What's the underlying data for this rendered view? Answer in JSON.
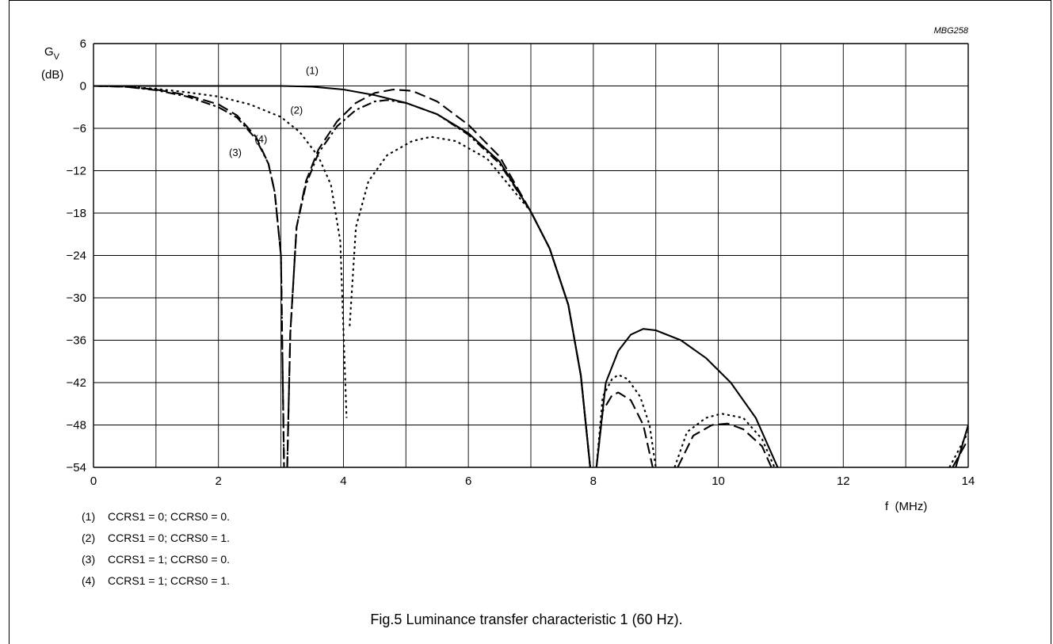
{
  "chart_data": {
    "type": "line",
    "code": "MBG258",
    "ylabel_main": "G",
    "ylabel_sub": "V",
    "ylabel_unit": "(dB)",
    "xlabel": "f  (MHz)",
    "xlim": [
      0,
      14
    ],
    "ylim": [
      -54,
      6
    ],
    "xticks": [
      0,
      2,
      4,
      6,
      8,
      10,
      12,
      14
    ],
    "yticks": [
      6,
      0,
      -6,
      -12,
      -18,
      -24,
      -30,
      -36,
      -42,
      -48,
      -54
    ],
    "tick_labels_y": [
      "6",
      "0",
      "−6",
      "−12",
      "−18",
      "−24",
      "−30",
      "−36",
      "−42",
      "−48",
      "−54"
    ],
    "grid": true,
    "series": [
      {
        "name": "(1)",
        "style": "solid",
        "segments": [
          [
            [
              0,
              0
            ],
            [
              1,
              0
            ],
            [
              2,
              0
            ],
            [
              3,
              0
            ],
            [
              3.5,
              -0.1
            ],
            [
              4,
              -0.5
            ],
            [
              4.5,
              -1.3
            ],
            [
              5,
              -2.4
            ],
            [
              5.5,
              -4.0
            ],
            [
              6,
              -6.7
            ],
            [
              6.5,
              -10.7
            ],
            [
              7,
              -17.8
            ],
            [
              7.3,
              -23
            ],
            [
              7.6,
              -31
            ],
            [
              7.8,
              -41
            ],
            [
              7.95,
              -54
            ]
          ],
          [
            [
              8.05,
              -54
            ],
            [
              8.2,
              -42
            ],
            [
              8.4,
              -37.5
            ],
            [
              8.6,
              -35.2
            ],
            [
              8.8,
              -34.4
            ],
            [
              9,
              -34.6
            ],
            [
              9.4,
              -36
            ],
            [
              9.8,
              -38.5
            ],
            [
              10.2,
              -42
            ],
            [
              10.6,
              -47
            ],
            [
              10.95,
              -54
            ]
          ],
          [
            [
              13.8,
              -54
            ],
            [
              14,
              -48
            ]
          ]
        ]
      },
      {
        "name": "(2)",
        "style": "dotted",
        "segments": [
          [
            [
              0,
              0
            ],
            [
              0.5,
              -0.1
            ],
            [
              1,
              -0.4
            ],
            [
              1.5,
              -0.9
            ],
            [
              2,
              -1.5
            ],
            [
              2.5,
              -2.6
            ],
            [
              3,
              -4.4
            ],
            [
              3.3,
              -6.5
            ],
            [
              3.6,
              -10
            ],
            [
              3.8,
              -14
            ],
            [
              3.95,
              -22
            ],
            [
              4.05,
              -47
            ]
          ],
          [
            [
              4.1,
              -34
            ],
            [
              4.2,
              -20
            ],
            [
              4.4,
              -13.5
            ],
            [
              4.7,
              -9.8
            ],
            [
              5.1,
              -7.8
            ],
            [
              5.4,
              -7.2
            ],
            [
              5.8,
              -7.8
            ],
            [
              6.3,
              -10.3
            ],
            [
              7,
              -17.8
            ],
            [
              7.3,
              -23
            ],
            [
              7.6,
              -31
            ],
            [
              7.8,
              -41
            ],
            [
              7.95,
              -54
            ]
          ],
          [
            [
              8.05,
              -54
            ],
            [
              8.15,
              -44
            ],
            [
              8.3,
              -41.5
            ],
            [
              8.4,
              -40.9
            ],
            [
              8.55,
              -41.5
            ],
            [
              8.75,
              -44
            ],
            [
              8.9,
              -48
            ],
            [
              9,
              -54
            ]
          ],
          [
            [
              9.3,
              -54
            ],
            [
              9.5,
              -49
            ],
            [
              9.8,
              -47
            ],
            [
              10.05,
              -46.4
            ],
            [
              10.4,
              -47
            ],
            [
              10.7,
              -50
            ],
            [
              10.9,
              -54
            ]
          ],
          [
            [
              13.7,
              -54
            ],
            [
              14,
              -49
            ]
          ]
        ]
      },
      {
        "name": "(3)",
        "style": "dash-dot",
        "segments": [
          [
            [
              0,
              0
            ],
            [
              0.5,
              -0.1
            ],
            [
              1,
              -0.6
            ],
            [
              1.5,
              -1.5
            ],
            [
              2,
              -3.0
            ],
            [
              2.3,
              -4.5
            ],
            [
              2.6,
              -7.5
            ],
            [
              2.8,
              -11
            ],
            [
              2.9,
              -15
            ],
            [
              3.0,
              -24
            ],
            [
              3.05,
              -54
            ]
          ],
          [
            [
              3.1,
              -54
            ],
            [
              3.15,
              -35
            ],
            [
              3.25,
              -20
            ],
            [
              3.4,
              -14
            ],
            [
              3.6,
              -9.5
            ],
            [
              3.9,
              -5.7
            ],
            [
              4.2,
              -3.4
            ],
            [
              4.5,
              -2.2
            ],
            [
              4.7,
              -2.0
            ],
            [
              5,
              -2.4
            ],
            [
              5.5,
              -4.0
            ],
            [
              6,
              -6.9
            ],
            [
              6.5,
              -11
            ],
            [
              7,
              -17.8
            ],
            [
              7.3,
              -23
            ],
            [
              7.6,
              -31
            ],
            [
              7.8,
              -41
            ],
            [
              7.95,
              -54
            ]
          ]
        ]
      },
      {
        "name": "(4)",
        "style": "dashed",
        "segments": [
          [
            [
              0,
              0
            ],
            [
              0.5,
              -0.1
            ],
            [
              1,
              -0.5
            ],
            [
              1.5,
              -1.3
            ],
            [
              2,
              -2.6
            ],
            [
              2.3,
              -4.2
            ],
            [
              2.6,
              -7.2
            ],
            [
              2.8,
              -11
            ],
            [
              2.9,
              -15
            ],
            [
              3.0,
              -24
            ],
            [
              3.05,
              -54
            ]
          ],
          [
            [
              3.1,
              -54
            ],
            [
              3.15,
              -35
            ],
            [
              3.25,
              -20
            ],
            [
              3.4,
              -13.5
            ],
            [
              3.6,
              -9
            ],
            [
              3.9,
              -5
            ],
            [
              4.2,
              -2.4
            ],
            [
              4.5,
              -1.0
            ],
            [
              4.8,
              -0.5
            ],
            [
              5.1,
              -0.7
            ],
            [
              5.5,
              -2.2
            ],
            [
              6,
              -5.5
            ],
            [
              6.5,
              -10
            ],
            [
              7,
              -17.8
            ],
            [
              7.3,
              -23
            ],
            [
              7.6,
              -31
            ],
            [
              7.8,
              -41
            ],
            [
              7.95,
              -54
            ]
          ],
          [
            [
              8.05,
              -54
            ],
            [
              8.15,
              -46
            ],
            [
              8.3,
              -43.8
            ],
            [
              8.4,
              -43.4
            ],
            [
              8.6,
              -44.5
            ],
            [
              8.8,
              -48
            ],
            [
              8.95,
              -54
            ]
          ],
          [
            [
              9.35,
              -54
            ],
            [
              9.6,
              -49.5
            ],
            [
              9.9,
              -48
            ],
            [
              10.15,
              -47.8
            ],
            [
              10.4,
              -48.6
            ],
            [
              10.7,
              -51
            ],
            [
              10.85,
              -54
            ]
          ],
          [
            [
              13.75,
              -54
            ],
            [
              14,
              -50
            ]
          ]
        ]
      }
    ],
    "annotations": [
      {
        "text": "(1)",
        "x": 3.5,
        "y": 1.7
      },
      {
        "text": "(2)",
        "x": 3.25,
        "y": -3.9
      },
      {
        "text": "(3)",
        "x": 2.27,
        "y": -9.9
      },
      {
        "text": "(4)",
        "x": 2.68,
        "y": -8.0
      }
    ]
  },
  "legend": [
    {
      "num": "(1)",
      "text": "CCRS1 = 0; CCRS0 = 0."
    },
    {
      "num": "(2)",
      "text": "CCRS1 = 0; CCRS0 = 1."
    },
    {
      "num": "(3)",
      "text": "CCRS1 = 1; CCRS0 = 0."
    },
    {
      "num": "(4)",
      "text": "CCRS1 = 1; CCRS0 = 1."
    }
  ],
  "caption": "Fig.5  Luminance transfer characteristic 1 (60 Hz)."
}
